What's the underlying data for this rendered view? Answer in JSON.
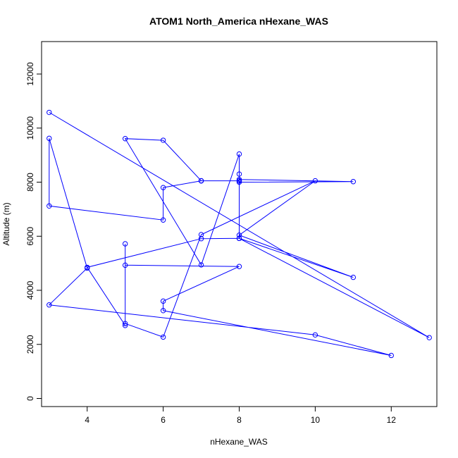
{
  "chart_data": {
    "type": "line",
    "title": "ATOM1 North_America nHexane_WAS",
    "xlabel": "nHexane_WAS",
    "ylabel": "Altitude (m)",
    "xlim": [
      2.8,
      13.2
    ],
    "ylim": [
      -300,
      13200
    ],
    "xticks": [
      4,
      6,
      8,
      10,
      12
    ],
    "yticks": [
      0,
      2000,
      4000,
      6000,
      8000,
      10000,
      12000
    ],
    "grid": false,
    "color": "#0000ff",
    "series": [
      {
        "x": [
          3,
          13,
          8,
          8,
          7,
          6,
          5,
          7,
          8,
          8,
          8,
          11,
          8,
          8,
          8,
          7,
          7,
          6,
          6,
          3,
          3,
          4,
          3,
          10,
          12,
          6,
          6,
          8,
          5,
          5,
          5,
          6,
          7,
          10,
          8,
          11,
          8,
          7,
          4,
          5
        ],
        "y": [
          10580,
          2250,
          5920,
          8050,
          8050,
          9550,
          9610,
          4940,
          9040,
          8300,
          8100,
          8020,
          8000,
          8050,
          8050,
          8050,
          8050,
          7800,
          6600,
          7120,
          9620,
          4820,
          3460,
          2350,
          1590,
          3250,
          3600,
          4880,
          4930,
          5720,
          2770,
          2270,
          6060,
          8050,
          6040,
          4480,
          5920,
          5910,
          4850,
          2700
        ]
      }
    ]
  }
}
